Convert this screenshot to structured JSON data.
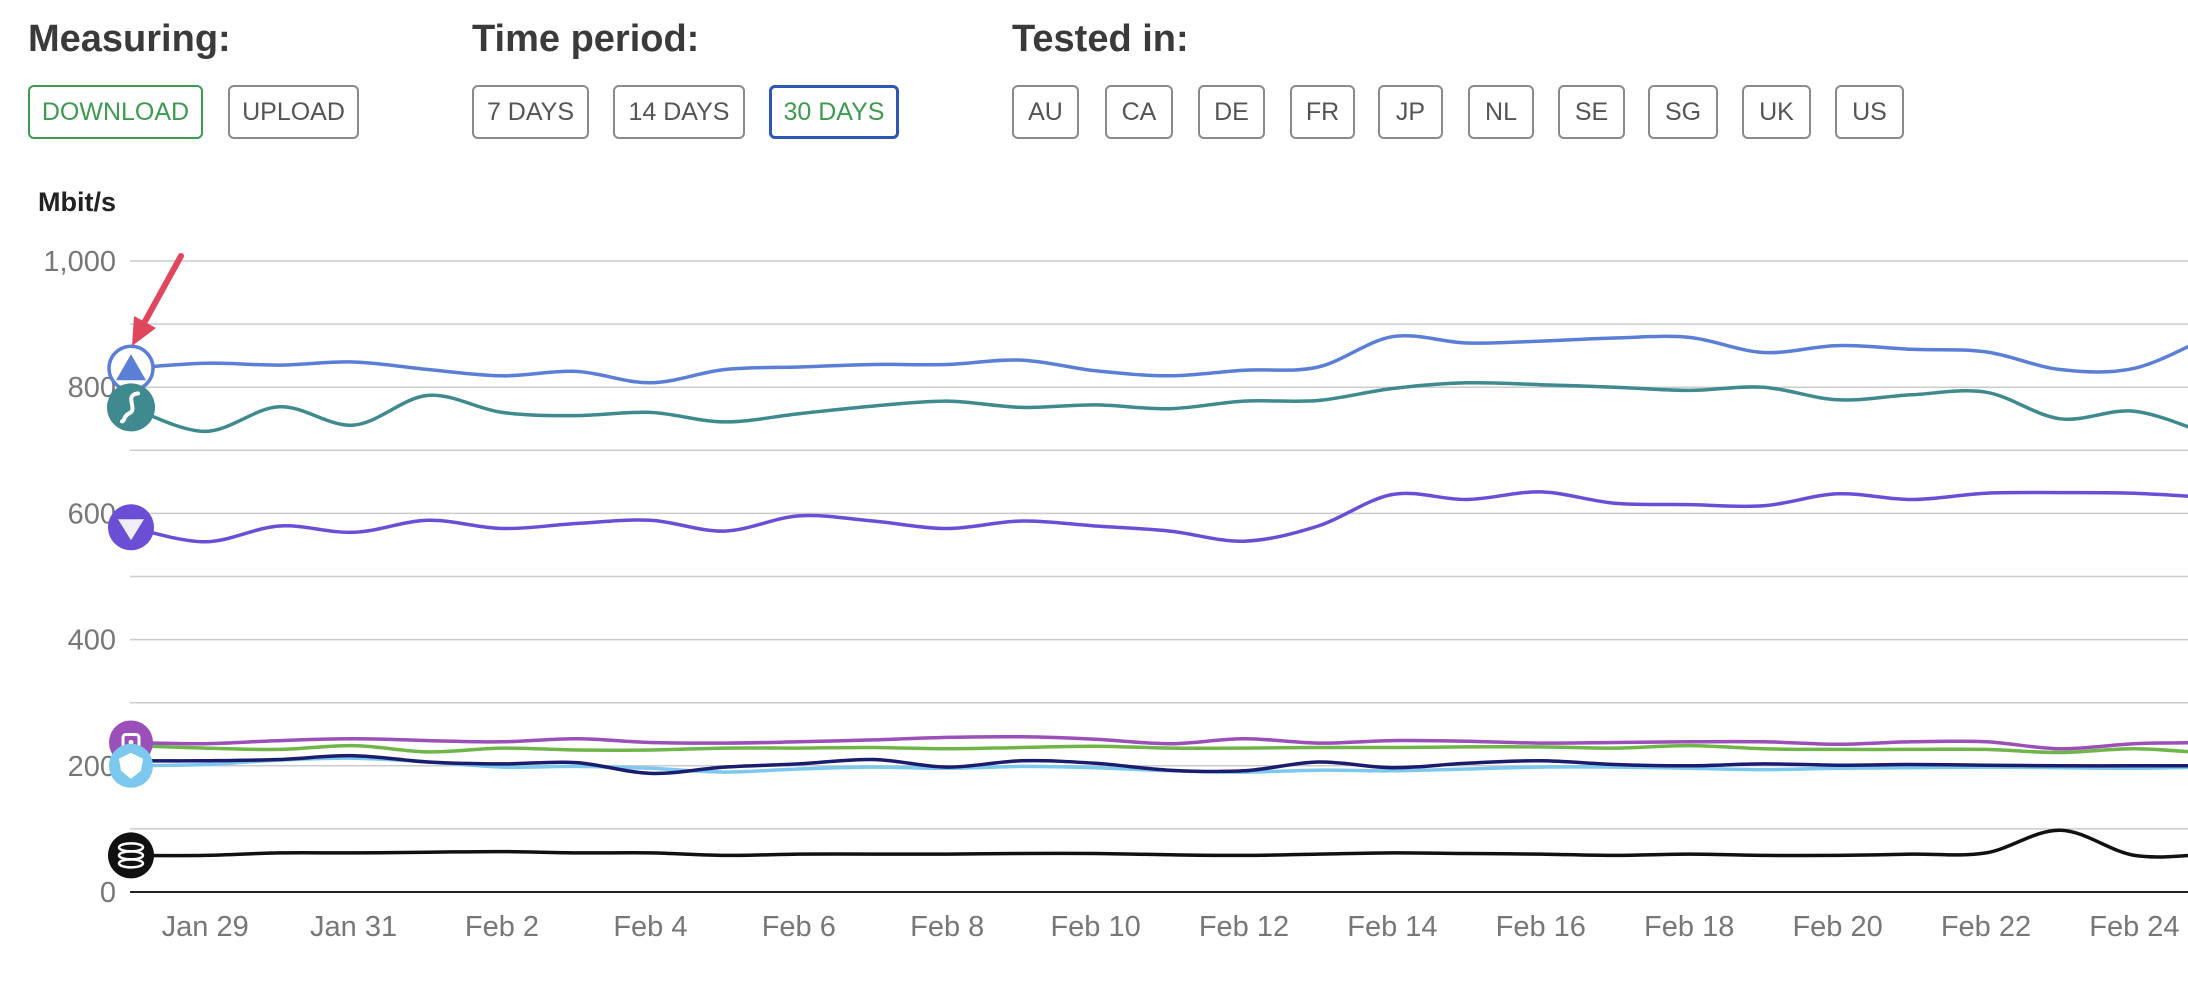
{
  "filters": {
    "measuring": {
      "title": "Measuring:",
      "buttons": [
        {
          "label": "DOWNLOAD",
          "selected": true
        },
        {
          "label": "UPLOAD",
          "selected": false
        }
      ]
    },
    "time_period": {
      "title": "Time period:",
      "buttons": [
        {
          "label": "7 DAYS",
          "selected": false
        },
        {
          "label": "14 DAYS",
          "selected": false
        },
        {
          "label": "30 DAYS",
          "selected": true
        }
      ]
    },
    "tested_in": {
      "title": "Tested in:",
      "buttons": [
        {
          "label": "AU"
        },
        {
          "label": "CA"
        },
        {
          "label": "DE"
        },
        {
          "label": "FR"
        },
        {
          "label": "JP"
        },
        {
          "label": "NL"
        },
        {
          "label": "SE"
        },
        {
          "label": "SG"
        },
        {
          "label": "UK"
        },
        {
          "label": "US"
        }
      ]
    }
  },
  "colors": {
    "selected_text": "#3d9a50",
    "selected_border": "#2c57b3",
    "arrow": "#e0475e",
    "gridline": "#cccccc"
  },
  "chart_data": {
    "type": "line",
    "ylabel": "Mbit/s",
    "ylim": [
      0,
      1000
    ],
    "yticks": [
      0,
      200,
      400,
      600,
      800,
      1000
    ],
    "ytick_labels": [
      "0",
      "200",
      "400",
      "600",
      "800",
      "1,000"
    ],
    "grid": true,
    "x": [
      "Jan 28",
      "Jan 29",
      "Jan 30",
      "Jan 31",
      "Feb 1",
      "Feb 2",
      "Feb 3",
      "Feb 4",
      "Feb 5",
      "Feb 6",
      "Feb 7",
      "Feb 8",
      "Feb 9",
      "Feb 10",
      "Feb 11",
      "Feb 12",
      "Feb 13",
      "Feb 14",
      "Feb 15",
      "Feb 16",
      "Feb 17",
      "Feb 18",
      "Feb 19",
      "Feb 20",
      "Feb 21",
      "Feb 22",
      "Feb 23",
      "Feb 24",
      "Feb 25"
    ],
    "xtick_labels": [
      "Jan 29",
      "Jan 31",
      "Feb 2",
      "Feb 4",
      "Feb 6",
      "Feb 8",
      "Feb 10",
      "Feb 12",
      "Feb 14",
      "Feb 16",
      "Feb 18",
      "Feb 20",
      "Feb 22",
      "Feb 24"
    ],
    "series": [
      {
        "color": "#5b7fd6",
        "icon": "mountain-icon",
        "values": [
          830,
          838,
          835,
          840,
          828,
          818,
          825,
          807,
          828,
          832,
          836,
          836,
          843,
          826,
          818,
          827,
          832,
          880,
          870,
          873,
          878,
          879,
          855,
          866,
          860,
          856,
          828,
          830,
          880
        ]
      },
      {
        "color": "#3e8a8f",
        "icon": "surfshark-icon",
        "values": [
          768,
          730,
          769,
          740,
          787,
          760,
          755,
          760,
          745,
          758,
          770,
          778,
          768,
          772,
          766,
          778,
          779,
          798,
          807,
          804,
          800,
          795,
          800,
          780,
          788,
          792,
          750,
          762,
          725
        ]
      },
      {
        "color": "#6a4fd6",
        "icon": "triangle-shield-icon",
        "values": [
          578,
          555,
          580,
          570,
          589,
          576,
          584,
          589,
          572,
          596,
          588,
          576,
          588,
          580,
          572,
          556,
          580,
          630,
          622,
          634,
          616,
          614,
          612,
          631,
          622,
          632,
          633,
          632,
          625
        ]
      },
      {
        "color": "#9b4fb8",
        "icon": "lock-icon",
        "values": [
          237,
          235,
          240,
          243,
          240,
          238,
          243,
          237,
          236,
          238,
          241,
          245,
          246,
          242,
          235,
          243,
          236,
          240,
          239,
          236,
          237,
          238,
          238,
          234,
          238,
          238,
          227,
          235,
          237
        ]
      },
      {
        "color": "#6fb54a",
        "icon": "",
        "values": [
          232,
          228,
          226,
          232,
          222,
          228,
          225,
          225,
          228,
          228,
          229,
          227,
          229,
          231,
          228,
          228,
          229,
          229,
          230,
          230,
          228,
          232,
          227,
          226,
          226,
          226,
          221,
          227,
          220
        ]
      },
      {
        "color": "#1c1c6e",
        "icon": "",
        "values": [
          208,
          208,
          210,
          216,
          206,
          203,
          205,
          188,
          198,
          203,
          210,
          198,
          208,
          204,
          193,
          192,
          206,
          197,
          204,
          208,
          202,
          200,
          203,
          201,
          202,
          201,
          200,
          200,
          200
        ]
      },
      {
        "color": "#7cc8ee",
        "icon": "shield-icon",
        "values": [
          200,
          202,
          209,
          212,
          206,
          198,
          199,
          196,
          190,
          195,
          198,
          196,
          199,
          197,
          192,
          190,
          193,
          192,
          195,
          198,
          198,
          196,
          194,
          196,
          197,
          198,
          197,
          196,
          198
        ]
      },
      {
        "color": "#111111",
        "icon": "stack-icon",
        "values": [
          58,
          58,
          62,
          62,
          63,
          64,
          62,
          62,
          58,
          60,
          60,
          60,
          61,
          61,
          59,
          58,
          60,
          62,
          61,
          60,
          58,
          60,
          58,
          58,
          60,
          62,
          98,
          58,
          60
        ]
      }
    ]
  }
}
